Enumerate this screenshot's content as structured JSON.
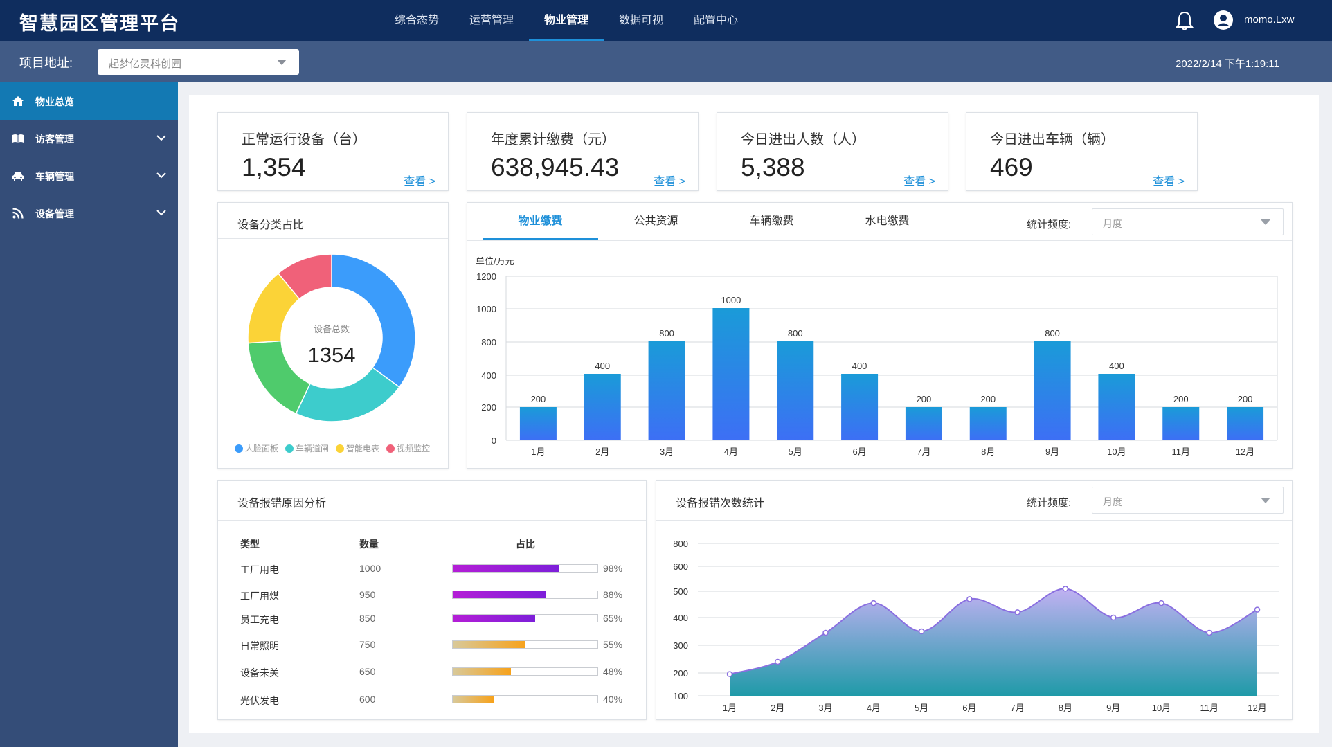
{
  "header": {
    "app_title": "智慧园区管理平台",
    "nav": [
      {
        "label": "综合态势",
        "active": false
      },
      {
        "label": "运营管理",
        "active": false
      },
      {
        "label": "物业管理",
        "active": true
      },
      {
        "label": "数据可视",
        "active": false
      },
      {
        "label": "配置中心",
        "active": false
      }
    ],
    "username": "momo.Lxw",
    "bell_icon": "bell-icon",
    "user_icon": "user-circle-icon"
  },
  "projectbar": {
    "label": "项目地址:",
    "selected": "起梦亿灵科创园",
    "datetime": "2022/2/14 下午1:19:11"
  },
  "sidebar": {
    "items": [
      {
        "label": "物业总览",
        "icon": "home-icon",
        "active": true,
        "expandable": false
      },
      {
        "label": "访客管理",
        "icon": "book-icon",
        "active": false,
        "expandable": true
      },
      {
        "label": "车辆管理",
        "icon": "car-icon",
        "active": false,
        "expandable": true
      },
      {
        "label": "设备管理",
        "icon": "rss-icon",
        "active": false,
        "expandable": true
      }
    ]
  },
  "kpis": [
    {
      "title": "正常运行设备（台）",
      "value": "1,354",
      "link": "查看 >"
    },
    {
      "title": "年度累计缴费（元）",
      "value": "638,945.43",
      "link": "查看 >"
    },
    {
      "title": "今日进出人数（人）",
      "value": "5,388",
      "link": "查看 >"
    },
    {
      "title": "今日进出车辆（辆）",
      "value": "469",
      "link": "查看 >"
    }
  ],
  "device_pie": {
    "title": "设备分类占比",
    "center_label": "设备总数",
    "center_value": "1354"
  },
  "fees": {
    "tabs": [
      {
        "label": "物业缴费",
        "active": true
      },
      {
        "label": "公共资源",
        "active": false
      },
      {
        "label": "车辆缴费",
        "active": false
      },
      {
        "label": "水电缴费",
        "active": false
      }
    ],
    "freq_label": "统计频度:",
    "freq_value": "月度",
    "unit": "单位/万元"
  },
  "reasons": {
    "title": "设备报错原因分析",
    "headers": [
      "类型",
      "数量",
      "占比"
    ],
    "rows": [
      {
        "type": "工厂用电",
        "count": "1000",
        "pct_label": "98%",
        "fraction": 0.73,
        "color": "purple"
      },
      {
        "type": "工厂用煤",
        "count": "950",
        "pct_label": "88%",
        "fraction": 0.64,
        "color": "purple"
      },
      {
        "type": "员工充电",
        "count": "850",
        "pct_label": "65%",
        "fraction": 0.57,
        "color": "purple"
      },
      {
        "type": "日常照明",
        "count": "750",
        "pct_label": "55%",
        "fraction": 0.5,
        "color": "orange"
      },
      {
        "type": "设备未关",
        "count": "650",
        "pct_label": "48%",
        "fraction": 0.4,
        "color": "orange"
      },
      {
        "type": "光伏发电",
        "count": "600",
        "pct_label": "40%",
        "fraction": 0.28,
        "color": "orange"
      }
    ]
  },
  "errors": {
    "title": "设备报错次数统计",
    "freq_label": "统计频度:",
    "freq_value": "月度"
  },
  "colors": {
    "header_bg": "#0f2d5e",
    "projbar_bg": "#415b86",
    "sidebar_bg": "#344d78",
    "sidebar_active": "#1379b3",
    "accent": "#1e90d9",
    "bar_top": "#1a9bd8",
    "bar_bottom": "#3d6ff5",
    "purple_fill": "#9b1fd6",
    "orange_fill": "#f7a21b"
  },
  "chart_data": [
    {
      "type": "pie",
      "categories": [
        "人脸面板",
        "车辆道闸",
        "智能电表",
        "视频监控"
      ],
      "legend": [
        "人脸面板",
        "车辆道闸",
        "智能电表",
        "视频监控"
      ],
      "slices": [
        {
          "label": "人脸面板",
          "value": 35,
          "color": "#3b9cfb"
        },
        {
          "label": "",
          "value": 22,
          "color": "#3dcccc"
        },
        {
          "label": "",
          "value": 17,
          "color": "#4fcb6c"
        },
        {
          "label": "",
          "value": 15,
          "color": "#fbd337"
        },
        {
          "label": "",
          "value": 11,
          "color": "#f06179"
        }
      ],
      "legend_colors": [
        "#3b9cfb",
        "#3dcccc",
        "#fbd337",
        "#f06179"
      ],
      "legend_placement": "bottom"
    },
    {
      "type": "bar",
      "categories": [
        "1月",
        "2月",
        "3月",
        "4月",
        "5月",
        "6月",
        "7月",
        "8月",
        "9月",
        "10月",
        "11月",
        "12月"
      ],
      "values": [
        200,
        400,
        800,
        1000,
        800,
        400,
        200,
        200,
        800,
        400,
        200,
        200
      ],
      "ylabel": "单位/万元",
      "ylim": [
        0,
        1200
      ],
      "yticks": [
        0,
        200,
        400,
        800,
        1000,
        1200
      ],
      "data_labels": true,
      "grid": true
    },
    {
      "type": "area",
      "categories": [
        "1月",
        "2月",
        "3月",
        "4月",
        "5月",
        "6月",
        "7月",
        "8月",
        "9月",
        "10月",
        "11月",
        "12月"
      ],
      "values": [
        195,
        240,
        345,
        455,
        350,
        470,
        420,
        510,
        400,
        455,
        345,
        430
      ],
      "ylim": [
        100,
        800
      ],
      "yticks": [
        100,
        200,
        300,
        400,
        500,
        600,
        800
      ],
      "grid": true,
      "line_color": "#8a6fe0",
      "fill_top": "#c1b1f2",
      "fill_bottom": "#1f9aa8"
    }
  ]
}
